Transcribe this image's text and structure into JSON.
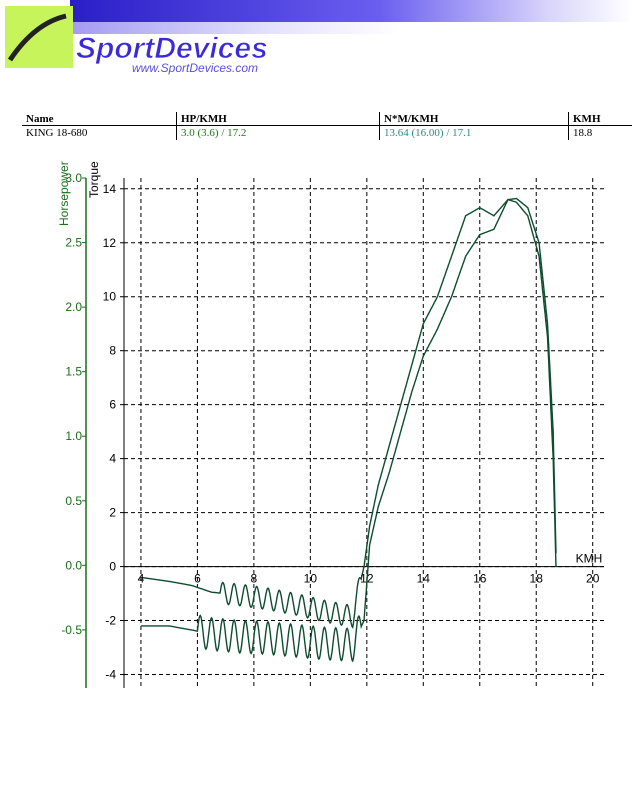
{
  "header": {
    "logo_text": "SportDevices",
    "logo_url": "www.SportDevices.com"
  },
  "table": {
    "headers": [
      "Name",
      "HP/KMH",
      "N*M/KMH",
      "KMH"
    ],
    "row": [
      "KING 18-680",
      "3.0 (3.6) / 17.2",
      "13.64 (16.00) / 17.1",
      "18.8"
    ]
  },
  "colors": {
    "hp_axis": "#1a6e1a",
    "curve": "#0d4d2e",
    "grid": "#000000",
    "banner_purple": "#3a2ad8",
    "logo_green": "#c6f45a"
  },
  "chart_data": {
    "type": "line",
    "xlabel": "KMH",
    "ylabel_left": "Horsepower",
    "ylabel_right": "Torque",
    "xlim": [
      3.4,
      20.4
    ],
    "ylim_torque": [
      -4.5,
      14.4
    ],
    "ylim_hp": [
      -0.95,
      3.0
    ],
    "x_ticks": [
      "4",
      "6",
      "8",
      "10",
      "12",
      "14",
      "16",
      "18",
      "20"
    ],
    "torque_ticks": [
      "-4",
      "-2",
      "0",
      "2",
      "4",
      "6",
      "8",
      "10",
      "12",
      "14"
    ],
    "hp_ticks": [
      "-0.5",
      "0.0",
      "0.5",
      "1.0",
      "1.5",
      "2.0",
      "2.5",
      "3.0"
    ],
    "grid": true,
    "series": [
      {
        "x": [
          4.0,
          5.0,
          5.8,
          6.5,
          7.5,
          8.5,
          9.5,
          10.5,
          11.5,
          11.9,
          12.1,
          12.4,
          12.8,
          13.2,
          13.6,
          14.0,
          14.5,
          15.0,
          15.5,
          16.0,
          16.5,
          17.0,
          17.3,
          17.7,
          18.1,
          18.4,
          18.6,
          18.7
        ],
        "y": [
          -0.4,
          -0.55,
          -0.7,
          -0.95,
          -1.05,
          -1.2,
          -1.4,
          -1.65,
          -1.85,
          0.0,
          1.5,
          3.0,
          4.5,
          6.0,
          7.5,
          9.0,
          10.0,
          11.5,
          13.0,
          13.3,
          13.0,
          13.6,
          13.64,
          13.3,
          12.0,
          9.0,
          5.0,
          0.5
        ],
        "ripple": {
          "from": 6.8,
          "to": 11.8,
          "amplitude": 0.4,
          "period": 0.4
        }
      },
      {
        "x": [
          4.0,
          5.0,
          5.8,
          6.5,
          7.5,
          8.5,
          9.5,
          10.5,
          11.5,
          11.9,
          12.1,
          12.4,
          12.8,
          13.2,
          13.6,
          14.0,
          14.5,
          15.0,
          15.5,
          16.0,
          16.5,
          17.0,
          17.3,
          17.7,
          18.1,
          18.4,
          18.6,
          18.7
        ],
        "y": [
          -2.2,
          -2.2,
          -2.35,
          -2.5,
          -2.6,
          -2.65,
          -2.75,
          -2.85,
          -2.9,
          -2.0,
          0.8,
          2.2,
          3.5,
          5.0,
          6.5,
          7.8,
          8.8,
          10.0,
          11.5,
          12.3,
          12.5,
          13.6,
          13.5,
          13.0,
          11.5,
          8.5,
          4.0,
          0.0
        ],
        "ripple": {
          "from": 6.0,
          "to": 11.8,
          "amplitude": 0.6,
          "period": 0.4
        }
      }
    ]
  }
}
